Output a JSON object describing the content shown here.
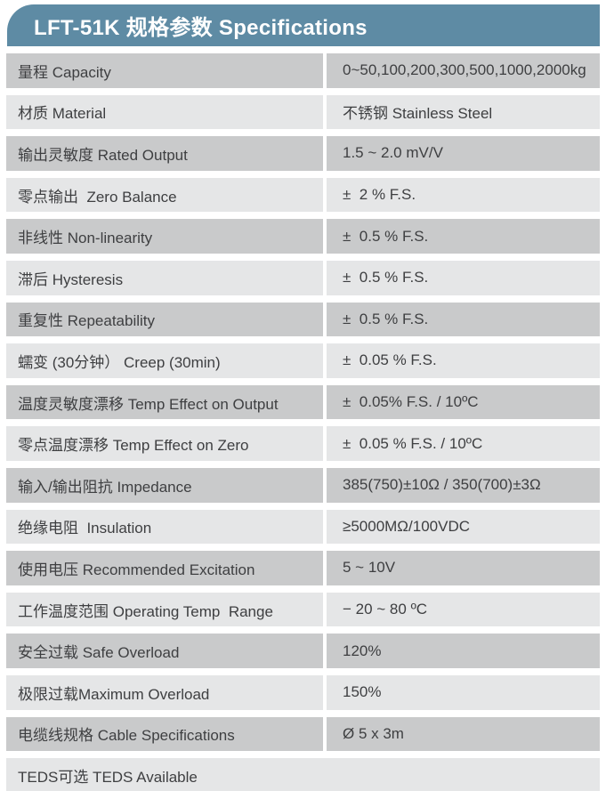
{
  "header": {
    "title": "LFT-51K 规格参数 Specifications",
    "bg_color": "#5e8ba4",
    "text_color": "#ffffff"
  },
  "table": {
    "row_dark_color": "#c9cacb",
    "row_light_color": "#e5e6e7",
    "text_color": "#3e3f41",
    "rows": [
      {
        "label": "量程 Capacity",
        "value": "0~50,100,200,300,500,1000,2000kg"
      },
      {
        "label": "材质 Material",
        "value": "不锈钢 Stainless Steel"
      },
      {
        "label": "输出灵敏度 Rated Output",
        "value": "1.5 ~ 2.0 mV/V"
      },
      {
        "label": "零点输出  Zero Balance",
        "value": "±  2 % F.S."
      },
      {
        "label": "非线性 Non-linearity",
        "value": "±  0.5 % F.S."
      },
      {
        "label": "滞后 Hysteresis",
        "value": "±  0.5 % F.S."
      },
      {
        "label": "重复性 Repeatability",
        "value": "±  0.5 % F.S."
      },
      {
        "label": "蠕变 (30分钟） Creep (30min)",
        "value": "±  0.05 % F.S."
      },
      {
        "label": "温度灵敏度漂移 Temp Effect on Output",
        "value": "±  0.05% F.S. / 10ºC"
      },
      {
        "label": "零点温度漂移 Temp Effect on Zero",
        "value": "±  0.05 % F.S. / 10ºC"
      },
      {
        "label": "输入/输出阻抗 Impedance",
        "value": "385(750)±10Ω / 350(700)±3Ω"
      },
      {
        "label": "绝缘电阻  Insulation",
        "value": "≥5000MΩ/100VDC"
      },
      {
        "label": "使用电压 Recommended Excitation",
        "value": "5 ~ 10V"
      },
      {
        "label": "工作温度范围 Operating Temp  Range",
        "value": "− 20 ~ 80 ºC"
      },
      {
        "label": "安全过载 Safe Overload",
        "value": "120%"
      },
      {
        "label": "极限过载Maximum Overload",
        "value": "150%"
      },
      {
        "label": "电缆线规格 Cable Specifications",
        "value": "Ø 5 x 3m"
      },
      {
        "label": "TEDS可选 TEDS Available",
        "value": "",
        "full_width": true
      }
    ]
  }
}
